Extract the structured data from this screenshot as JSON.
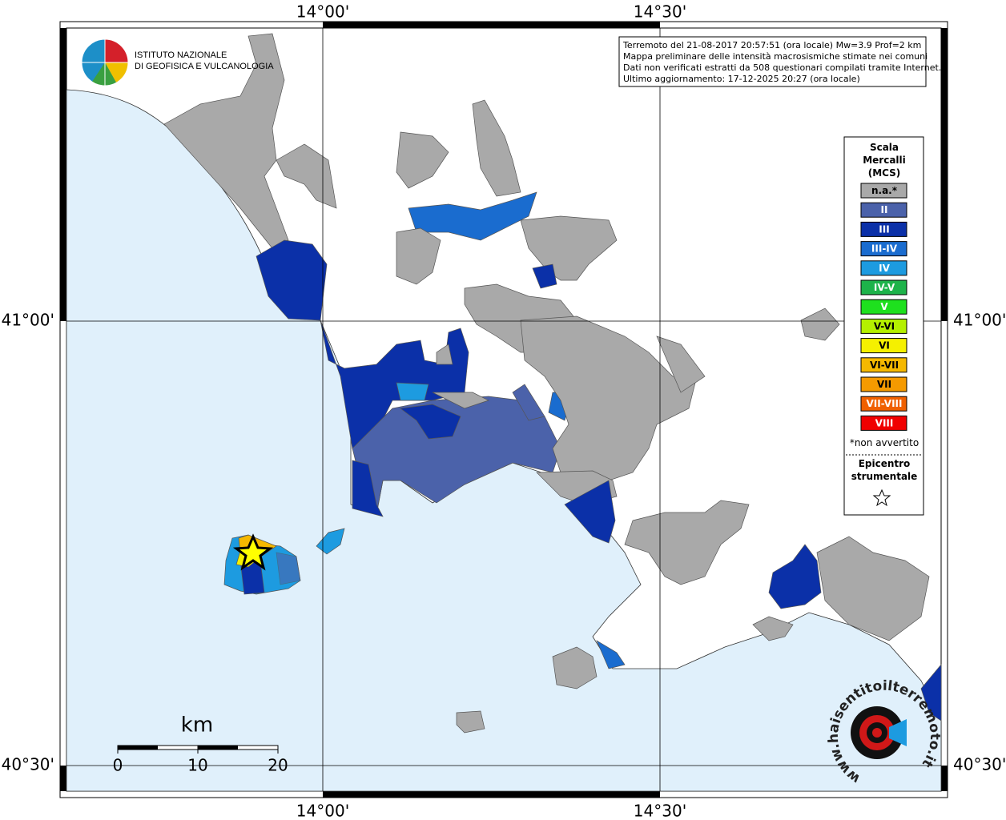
{
  "graticule": {
    "lon_labels": [
      "14°00'",
      "14°30'"
    ],
    "lat_labels": [
      "41°00'",
      "40°30'"
    ]
  },
  "logo": {
    "line1": "ISTITUTO NAZIONALE",
    "line2": "DI GEOFISICA E VULCANOLOGIA"
  },
  "info": [
    "Terremoto del 21-08-2017 20:57:51 (ora locale) Mw=3.9 Prof=2 km",
    "Mappa preliminare delle intensità macrosismiche stimate nei comuni",
    "Dati non verificati estratti da 508 questionari compilati tramite Internet.",
    "Ultimo aggiornamento: 17-12-2025 20:27 (ora locale)"
  ],
  "legend": {
    "title": [
      "Scala",
      "Mercalli",
      "(MCS)"
    ],
    "items": [
      {
        "label": "n.a.*",
        "color": "#a9a9a9"
      },
      {
        "label": "II",
        "color": "#4b62aa"
      },
      {
        "label": "III",
        "color": "#0b30a8"
      },
      {
        "label": "III-IV",
        "color": "#1a6ccf"
      },
      {
        "label": "IV",
        "color": "#1d9be0"
      },
      {
        "label": "IV-V",
        "color": "#1db34a"
      },
      {
        "label": "V",
        "color": "#1ee01e"
      },
      {
        "label": "V-VI",
        "color": "#b4f000"
      },
      {
        "label": "VI",
        "color": "#f5f000"
      },
      {
        "label": "VI-VII",
        "color": "#f5b800"
      },
      {
        "label": "VII",
        "color": "#f59a00"
      },
      {
        "label": "VII-VIII",
        "color": "#f06000"
      },
      {
        "label": "VIII",
        "color": "#f00000"
      }
    ],
    "note": "*non avvertito",
    "epicenter": [
      "Epicentro",
      "strumentale"
    ]
  },
  "scale_bar": {
    "unit": "km",
    "ticks": [
      0,
      10,
      20
    ]
  },
  "watermark": "www.haisentitoilterremoto.it"
}
